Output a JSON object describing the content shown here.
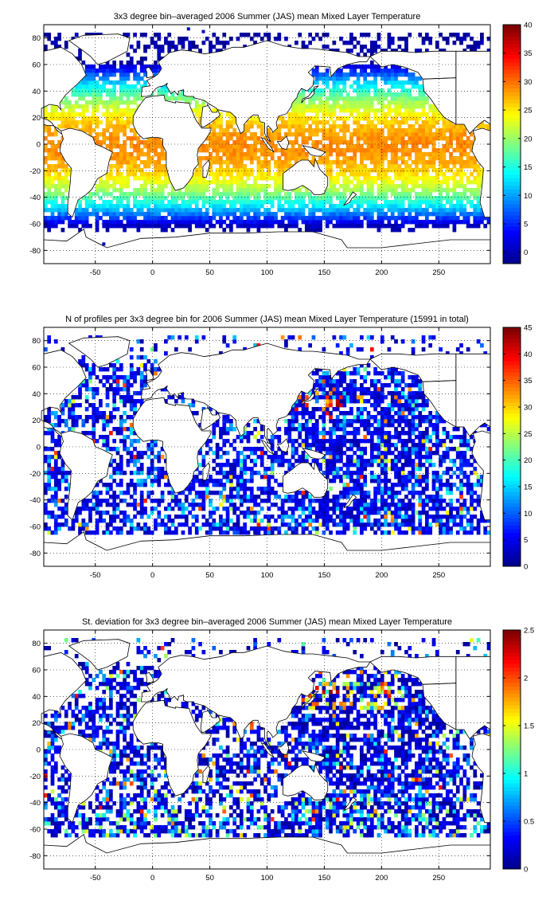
{
  "colors": {
    "jet": [
      "#00008f",
      "#0000ff",
      "#0080ff",
      "#00ffff",
      "#80ff80",
      "#ffff00",
      "#ff8000",
      "#ff0000",
      "#800000"
    ],
    "land_fill": "#ffffff",
    "coast": "#000000",
    "grid": "#000000"
  },
  "chart_data": [
    {
      "type": "heatmap",
      "title": "3x3 degree bin–averaged 2006 Summer (JAS) mean Mixed Layer Temperature",
      "xlabel": "",
      "ylabel": "",
      "xlim": [
        -95,
        295
      ],
      "ylim": [
        -90,
        90
      ],
      "x_ticks": [
        -50,
        0,
        50,
        100,
        150,
        200,
        250
      ],
      "y_ticks": [
        80,
        60,
        40,
        20,
        0,
        -20,
        -40,
        -60,
        -80
      ],
      "x_tick_labels": [
        "-50",
        "0",
        "50",
        "100",
        "150",
        "200",
        "250"
      ],
      "y_tick_labels": [
        "80",
        "60",
        "40",
        "20",
        "0",
        "-20",
        "-40",
        "-60",
        "-80"
      ],
      "grid": true,
      "colorbar": {
        "range": [
          -2,
          40
        ],
        "ticks": [
          0,
          5,
          10,
          15,
          20,
          25,
          30,
          35,
          40
        ],
        "tick_labels": [
          "0",
          "5",
          "10",
          "15",
          "20",
          "25",
          "30",
          "35",
          "40"
        ]
      },
      "bin_size_deg": 3,
      "field": "temperature",
      "coverage": "dense"
    },
    {
      "type": "heatmap",
      "title": "N of profiles per 3x3 degree bin for 2006 Summer (JAS) mean Mixed Layer Temperature  (15991 in total)",
      "xlabel": "",
      "ylabel": "",
      "xlim": [
        -95,
        295
      ],
      "ylim": [
        -90,
        90
      ],
      "x_ticks": [
        -50,
        0,
        50,
        100,
        150,
        200,
        250
      ],
      "y_ticks": [
        80,
        60,
        40,
        20,
        0,
        -20,
        -40,
        -60,
        -80
      ],
      "x_tick_labels": [
        "-50",
        "0",
        "50",
        "100",
        "150",
        "200",
        "250"
      ],
      "y_tick_labels": [
        "80",
        "60",
        "40",
        "20",
        "0",
        "-20",
        "-40",
        "-60",
        "-80"
      ],
      "grid": true,
      "colorbar": {
        "range": [
          0,
          45
        ],
        "ticks": [
          0,
          5,
          10,
          15,
          20,
          25,
          30,
          35,
          40,
          45
        ],
        "tick_labels": [
          "0",
          "5",
          "10",
          "15",
          "20",
          "25",
          "30",
          "35",
          "40",
          "45"
        ]
      },
      "bin_size_deg": 3,
      "field": "count",
      "coverage": "sparse"
    },
    {
      "type": "heatmap",
      "title": "St. deviation for 3x3 degree bin–averaged 2006 Summer (JAS) mean Mixed Layer Temperature",
      "xlabel": "",
      "ylabel": "",
      "xlim": [
        -95,
        295
      ],
      "ylim": [
        -90,
        90
      ],
      "x_ticks": [
        -50,
        0,
        50,
        100,
        150,
        200,
        250
      ],
      "y_ticks": [
        80,
        60,
        40,
        20,
        0,
        -20,
        -40,
        -60,
        -80
      ],
      "x_tick_labels": [
        "-50",
        "0",
        "50",
        "100",
        "150",
        "200",
        "250"
      ],
      "y_tick_labels": [
        "80",
        "60",
        "40",
        "20",
        "0",
        "-20",
        "-40",
        "-60",
        "-80"
      ],
      "grid": true,
      "colorbar": {
        "range": [
          0,
          2.5
        ],
        "ticks": [
          0,
          0.5,
          1,
          1.5,
          2,
          2.5
        ],
        "tick_labels": [
          "0",
          "0.5",
          "1",
          "1.5",
          "2",
          "2.5"
        ]
      },
      "bin_size_deg": 3,
      "field": "stdev",
      "coverage": "sparse"
    }
  ]
}
